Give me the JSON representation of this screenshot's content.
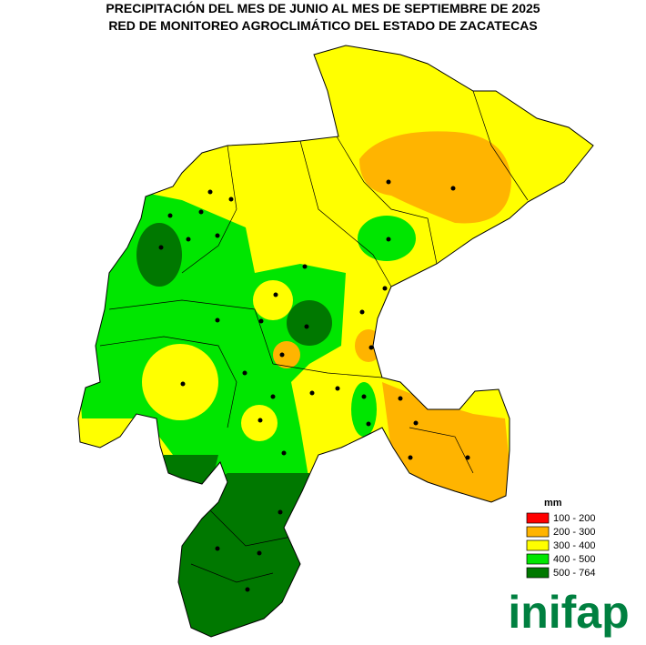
{
  "title": {
    "line1": "PRECIPITACIÓN DEL MES DE JUNIO AL MES DE SEPTIEMBRE DE 2025",
    "line2": "RED DE MONITOREO AGROCLIMÁTICO DEL ESTADO DE ZACATECAS"
  },
  "legend": {
    "title": "mm",
    "items": [
      {
        "label": "100 - 200",
        "color": "#ff0000"
      },
      {
        "label": "200 - 300",
        "color": "#ffb400"
      },
      {
        "label": "300 - 400",
        "color": "#ffff00"
      },
      {
        "label": "400 - 500",
        "color": "#00e600"
      },
      {
        "label": "500 - 764",
        "color": "#007800"
      }
    ]
  },
  "logo": "inifap"
}
